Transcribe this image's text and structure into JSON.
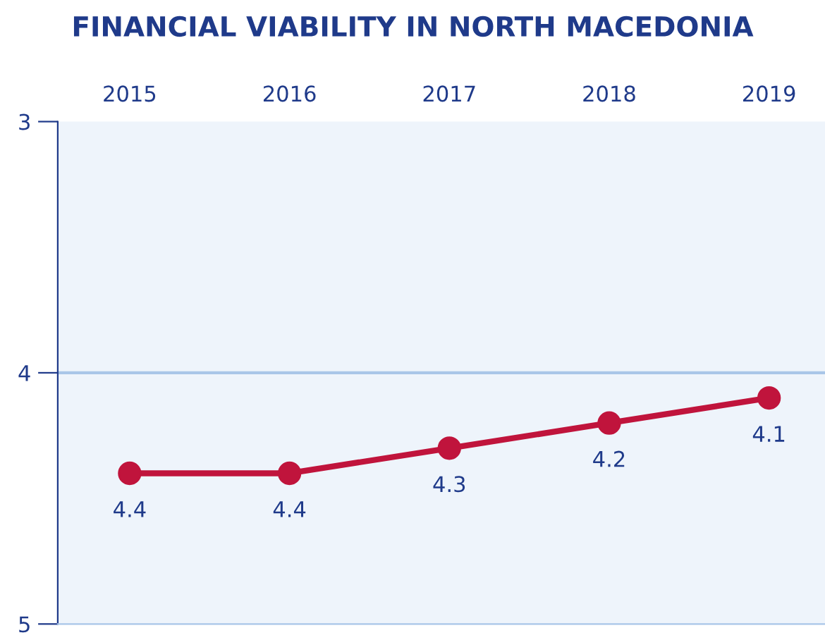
{
  "chart_data": {
    "type": "line",
    "title": "FINANCIAL VIABILITY IN NORTH MACEDONIA",
    "categories": [
      "2015",
      "2016",
      "2017",
      "2018",
      "2019"
    ],
    "series": [
      {
        "color": "#c0143c",
        "values": [
          4.4,
          4.4,
          4.3,
          4.2,
          4.1
        ]
      }
    ],
    "ylim": [
      5,
      3
    ],
    "yticks": [
      3,
      4,
      5
    ],
    "ref_lines": [
      {
        "axis": "y",
        "value": 4,
        "color": "#a9c6e8"
      }
    ],
    "marker": "circle",
    "line_style": "solid",
    "data_labels": true
  }
}
